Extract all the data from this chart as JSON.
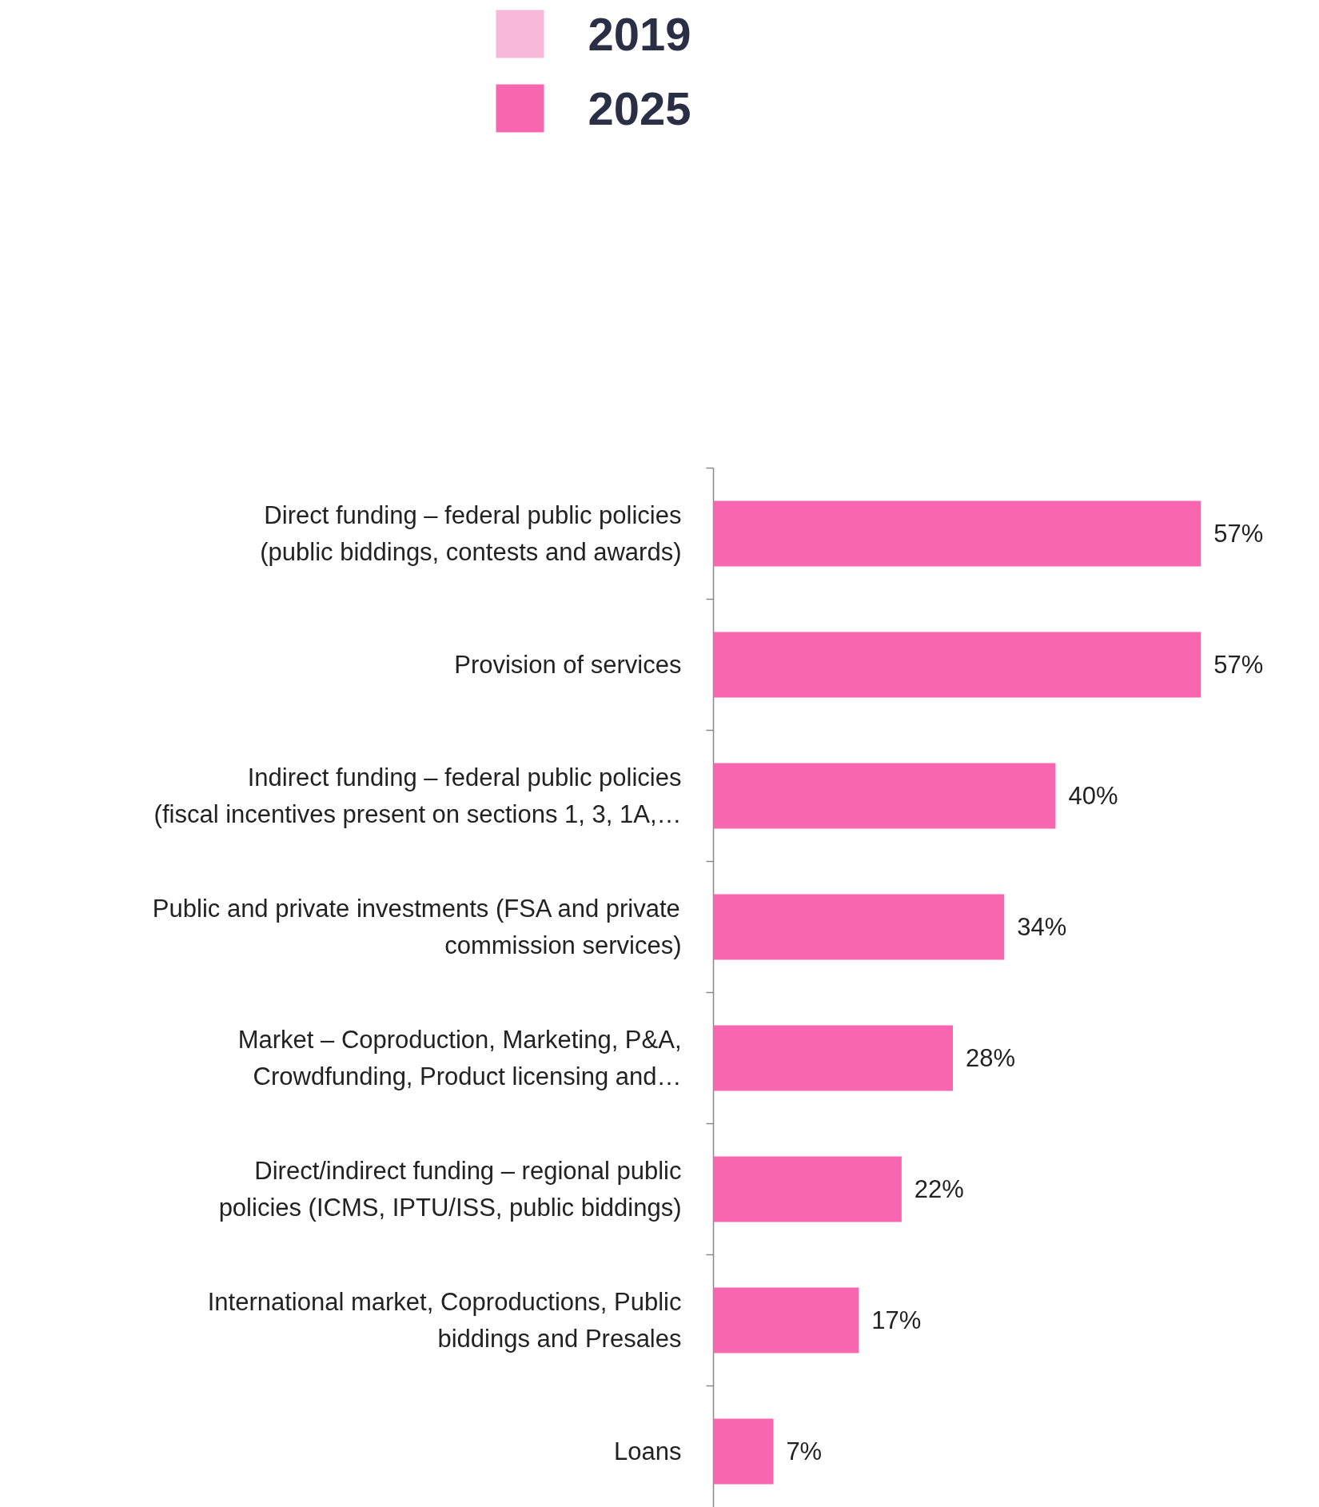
{
  "chart_data": {
    "type": "bar",
    "orientation": "horizontal",
    "categories": [
      "Direct funding – federal public policies\n(public biddings, contests and awards)",
      "Provision of services",
      "Indirect funding – federal public policies\n(fiscal incentives present on sections 1, 3, 1A,…",
      "Public and private investments (FSA and private\ncommission services)",
      "Market – Coproduction, Marketing, P&A,\nCrowdfunding, Product licensing and…",
      "Direct/indirect funding – regional public\npolicies (ICMS, IPTU/ISS, public biddings)",
      "International market, Coproductions, Public\nbiddings and Presales",
      "Loans"
    ],
    "series": [
      {
        "name": "2019",
        "color": "#f8b8d8",
        "values": [
          null,
          null,
          null,
          null,
          null,
          null,
          null,
          null
        ]
      },
      {
        "name": "2025",
        "color": "#f766ae",
        "values": [
          57,
          57,
          40,
          34,
          28,
          22,
          17,
          7
        ],
        "value_labels": [
          "57%",
          "57%",
          "40%",
          "34%",
          "28%",
          "22%",
          "17%",
          "7%"
        ]
      }
    ],
    "legend": "top",
    "tick_labels": "y"
  }
}
